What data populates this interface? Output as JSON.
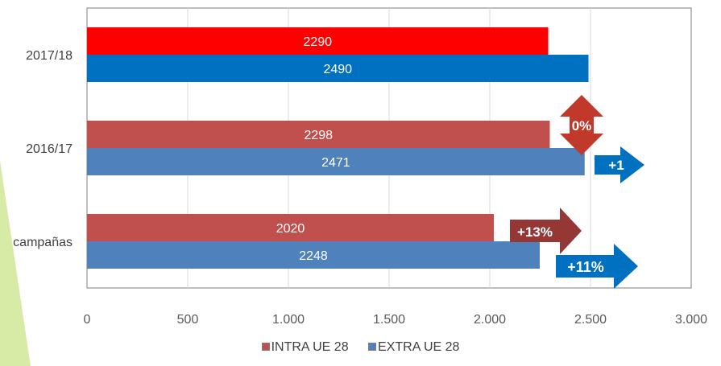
{
  "chart_data": {
    "type": "bar",
    "orientation": "horizontal",
    "categories": [
      "2017/18",
      "2016/17",
      "campañas"
    ],
    "series": [
      {
        "name": "INTRA UE 28",
        "values": [
          2290,
          2298,
          2020
        ],
        "colors": [
          "#ff0000",
          "#c0504d",
          "#c0504d"
        ],
        "labels": [
          "2290",
          "2298",
          "2020"
        ]
      },
      {
        "name": "EXTRA UE 28",
        "values": [
          2490,
          2471,
          2248
        ],
        "colors": [
          "#0070c0",
          "#4f81bd",
          "#4f81bd"
        ],
        "labels": [
          "2490",
          "2471",
          "2248"
        ]
      }
    ],
    "xlim": [
      0,
      3000
    ],
    "xticks": [
      0,
      500,
      1000,
      1500,
      2000,
      2500,
      3000
    ],
    "xtick_labels": [
      "0",
      "500",
      "1.000",
      "1.500",
      "2.000",
      "2.500",
      "3.000"
    ],
    "grid": true,
    "legend_position": "bottom",
    "annotations": [
      {
        "text": "0%",
        "shape": "double-arrow-vertical",
        "color": "#c0392b",
        "category": "2016/17"
      },
      {
        "text": "+1",
        "shape": "arrow-right",
        "color": "#0070c0",
        "category": "2016/17"
      },
      {
        "text": "+13%",
        "shape": "arrow-right",
        "color": "#953735",
        "category": "campañas"
      },
      {
        "text": "+11%",
        "shape": "arrow-right",
        "color": "#0070c0",
        "category": "campañas"
      }
    ]
  },
  "legend": [
    {
      "label": "INTRA UE 28",
      "color": "#c0504d"
    },
    {
      "label": "EXTRA UE 28",
      "color": "#4f81bd"
    }
  ]
}
